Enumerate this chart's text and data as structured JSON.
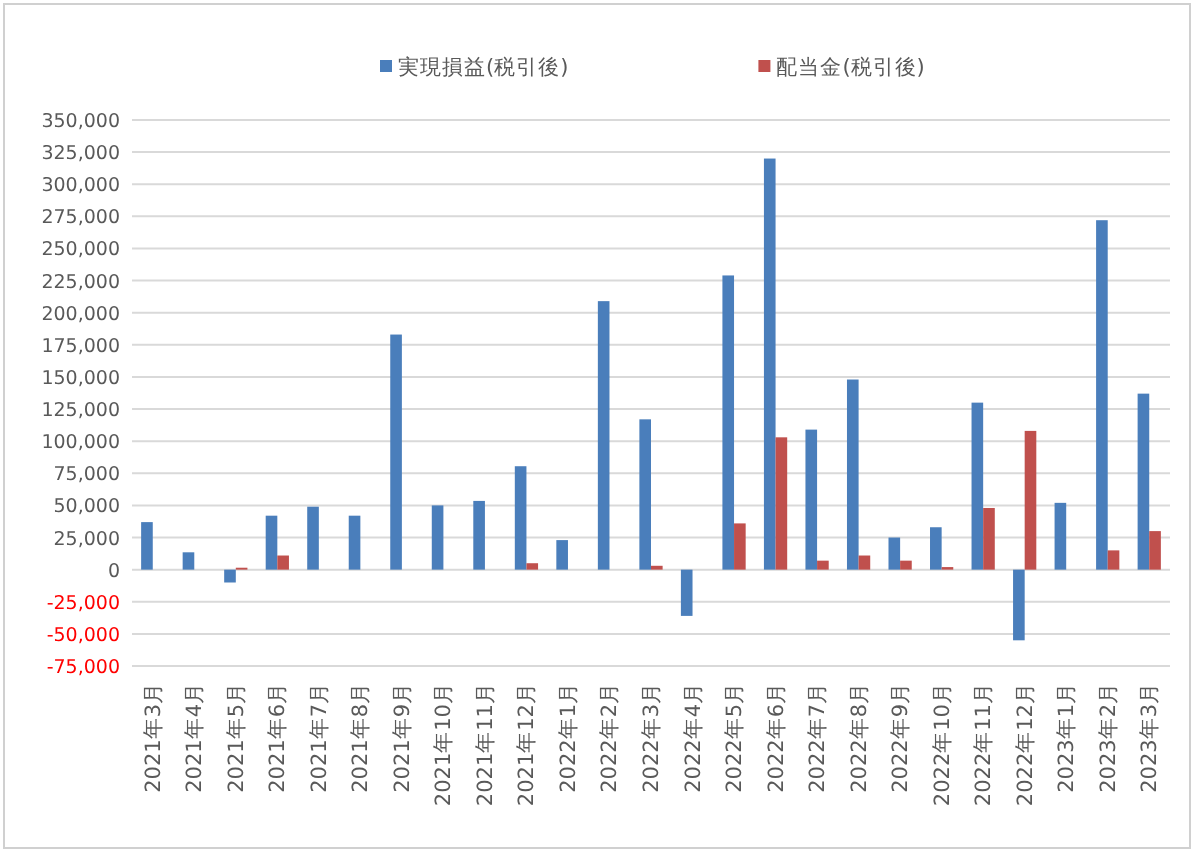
{
  "chart_data": {
    "type": "bar",
    "categories": [
      "2021年3月",
      "2021年4月",
      "2021年5月",
      "2021年6月",
      "2021年7月",
      "2021年8月",
      "2021年9月",
      "2021年10月",
      "2021年11月",
      "2021年12月",
      "2022年1月",
      "2022年2月",
      "2022年3月",
      "2022年4月",
      "2022年5月",
      "2022年6月",
      "2022年7月",
      "2022年8月",
      "2022年9月",
      "2022年10月",
      "2022年11月",
      "2022年12月",
      "2023年1月",
      "2023年2月",
      "2023年3月"
    ],
    "series": [
      {
        "name": "実現損益(税引後)",
        "color": "#4a7ebb",
        "values": [
          37000,
          13500,
          -10000,
          42000,
          49000,
          42000,
          183000,
          50000,
          53500,
          80500,
          23000,
          209000,
          117000,
          -36000,
          229000,
          320000,
          109000,
          148000,
          25000,
          33000,
          130000,
          -55000,
          52000,
          272000,
          137000
        ]
      },
      {
        "name": "配当金(税引後)",
        "color": "#c0504d",
        "values": [
          null,
          null,
          1500,
          11000,
          null,
          null,
          null,
          null,
          null,
          5000,
          null,
          null,
          3000,
          null,
          36000,
          103000,
          7000,
          11000,
          7000,
          2000,
          48000,
          108000,
          null,
          15000,
          30000
        ]
      }
    ],
    "ylim": [
      -75000,
      350000
    ],
    "yticks": [
      {
        "value": -75000,
        "label": "-75,000"
      },
      {
        "value": -50000,
        "label": "-50,000"
      },
      {
        "value": -25000,
        "label": "-25,000"
      },
      0,
      {
        "value": 25000,
        "label": "25,000"
      },
      {
        "value": 50000,
        "label": "50,000"
      },
      {
        "value": 75000,
        "label": "75,000"
      },
      {
        "value": 100000,
        "label": "100,000"
      },
      {
        "value": 125000,
        "label": "125,000"
      },
      {
        "value": 150000,
        "label": "150,000"
      },
      {
        "value": 175000,
        "label": "175,000"
      },
      {
        "value": 200000,
        "label": "200,000"
      },
      {
        "value": 225000,
        "label": "225,000"
      },
      {
        "value": 250000,
        "label": "250,000"
      },
      {
        "value": 275000,
        "label": "275,000"
      },
      {
        "value": 300000,
        "label": "300,000"
      },
      {
        "value": 325000,
        "label": "325,000"
      },
      {
        "value": 350000,
        "label": "350,000"
      }
    ],
    "grid": "y",
    "legend": "top"
  }
}
